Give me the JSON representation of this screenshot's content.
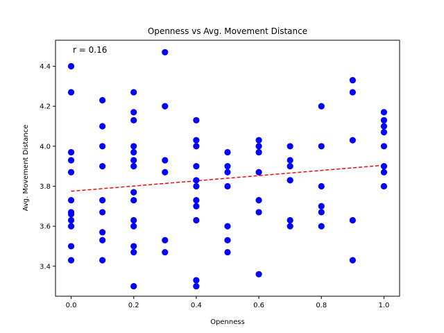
{
  "chart_data": {
    "type": "scatter",
    "title": "Openness vs Avg. Movement Distance",
    "xlabel": "Openness",
    "ylabel": "Avg. Movement Distance",
    "xlim": [
      -0.05,
      1.05
    ],
    "ylim": [
      3.25,
      4.53
    ],
    "xticks": [
      0.0,
      0.2,
      0.4,
      0.6,
      0.8,
      1.0
    ],
    "xtick_labels": [
      "0.0",
      "0.2",
      "0.4",
      "0.6",
      "0.8",
      "1.0"
    ],
    "yticks": [
      3.4,
      3.6,
      3.8,
      4.0,
      4.2,
      4.4
    ],
    "ytick_labels": [
      "3.4",
      "3.6",
      "3.8",
      "4.0",
      "4.2",
      "4.4"
    ],
    "grid": false,
    "marker_color": "#0000ff",
    "trend_color": "#ff0000",
    "annotation": "r = 0.16",
    "trendline": {
      "x": [
        0.0,
        1.0
      ],
      "y": [
        3.775,
        3.905
      ]
    },
    "points": [
      {
        "x": 0.0,
        "y": 4.4
      },
      {
        "x": 0.0,
        "y": 4.27
      },
      {
        "x": 0.0,
        "y": 3.97
      },
      {
        "x": 0.0,
        "y": 3.93
      },
      {
        "x": 0.0,
        "y": 3.87
      },
      {
        "x": 0.0,
        "y": 3.73
      },
      {
        "x": 0.0,
        "y": 3.67
      },
      {
        "x": 0.0,
        "y": 3.66
      },
      {
        "x": 0.0,
        "y": 3.63
      },
      {
        "x": 0.0,
        "y": 3.6
      },
      {
        "x": 0.0,
        "y": 3.5
      },
      {
        "x": 0.0,
        "y": 3.43
      },
      {
        "x": 0.1,
        "y": 4.23
      },
      {
        "x": 0.1,
        "y": 4.1
      },
      {
        "x": 0.1,
        "y": 4.0
      },
      {
        "x": 0.1,
        "y": 3.9
      },
      {
        "x": 0.1,
        "y": 3.73
      },
      {
        "x": 0.1,
        "y": 3.67
      },
      {
        "x": 0.1,
        "y": 3.57
      },
      {
        "x": 0.1,
        "y": 3.53
      },
      {
        "x": 0.1,
        "y": 3.43
      },
      {
        "x": 0.2,
        "y": 4.27
      },
      {
        "x": 0.2,
        "y": 4.17
      },
      {
        "x": 0.2,
        "y": 4.13
      },
      {
        "x": 0.2,
        "y": 4.0
      },
      {
        "x": 0.2,
        "y": 3.97
      },
      {
        "x": 0.2,
        "y": 3.93
      },
      {
        "x": 0.2,
        "y": 3.9
      },
      {
        "x": 0.2,
        "y": 3.77
      },
      {
        "x": 0.2,
        "y": 3.73
      },
      {
        "x": 0.2,
        "y": 3.63
      },
      {
        "x": 0.2,
        "y": 3.6
      },
      {
        "x": 0.2,
        "y": 3.5
      },
      {
        "x": 0.2,
        "y": 3.47
      },
      {
        "x": 0.2,
        "y": 3.3
      },
      {
        "x": 0.3,
        "y": 4.47
      },
      {
        "x": 0.3,
        "y": 4.2
      },
      {
        "x": 0.3,
        "y": 3.93
      },
      {
        "x": 0.3,
        "y": 3.87
      },
      {
        "x": 0.3,
        "y": 3.53
      },
      {
        "x": 0.3,
        "y": 3.47
      },
      {
        "x": 0.4,
        "y": 4.13
      },
      {
        "x": 0.4,
        "y": 4.03
      },
      {
        "x": 0.4,
        "y": 4.0
      },
      {
        "x": 0.4,
        "y": 3.9
      },
      {
        "x": 0.4,
        "y": 3.83
      },
      {
        "x": 0.4,
        "y": 3.8
      },
      {
        "x": 0.4,
        "y": 3.73
      },
      {
        "x": 0.4,
        "y": 3.7
      },
      {
        "x": 0.4,
        "y": 3.63
      },
      {
        "x": 0.4,
        "y": 3.33
      },
      {
        "x": 0.4,
        "y": 3.3
      },
      {
        "x": 0.5,
        "y": 3.97
      },
      {
        "x": 0.5,
        "y": 3.9
      },
      {
        "x": 0.5,
        "y": 3.87
      },
      {
        "x": 0.5,
        "y": 3.8
      },
      {
        "x": 0.5,
        "y": 3.6
      },
      {
        "x": 0.5,
        "y": 3.53
      },
      {
        "x": 0.5,
        "y": 3.47
      },
      {
        "x": 0.6,
        "y": 4.03
      },
      {
        "x": 0.6,
        "y": 4.0
      },
      {
        "x": 0.6,
        "y": 3.97
      },
      {
        "x": 0.6,
        "y": 3.87
      },
      {
        "x": 0.6,
        "y": 3.73
      },
      {
        "x": 0.6,
        "y": 3.67
      },
      {
        "x": 0.6,
        "y": 3.36
      },
      {
        "x": 0.7,
        "y": 4.0
      },
      {
        "x": 0.7,
        "y": 3.93
      },
      {
        "x": 0.7,
        "y": 3.9
      },
      {
        "x": 0.7,
        "y": 3.83
      },
      {
        "x": 0.7,
        "y": 3.83
      },
      {
        "x": 0.7,
        "y": 3.63
      },
      {
        "x": 0.7,
        "y": 3.6
      },
      {
        "x": 0.8,
        "y": 4.2
      },
      {
        "x": 0.8,
        "y": 4.0
      },
      {
        "x": 0.8,
        "y": 3.8
      },
      {
        "x": 0.8,
        "y": 3.7
      },
      {
        "x": 0.8,
        "y": 3.67
      },
      {
        "x": 0.8,
        "y": 3.6
      },
      {
        "x": 0.9,
        "y": 4.33
      },
      {
        "x": 0.9,
        "y": 4.27
      },
      {
        "x": 0.9,
        "y": 4.03
      },
      {
        "x": 0.9,
        "y": 3.63
      },
      {
        "x": 0.9,
        "y": 3.43
      },
      {
        "x": 1.0,
        "y": 4.17
      },
      {
        "x": 1.0,
        "y": 4.13
      },
      {
        "x": 1.0,
        "y": 4.1
      },
      {
        "x": 1.0,
        "y": 4.07
      },
      {
        "x": 1.0,
        "y": 4.0
      },
      {
        "x": 1.0,
        "y": 3.9
      },
      {
        "x": 1.0,
        "y": 3.87
      },
      {
        "x": 1.0,
        "y": 3.8
      }
    ]
  }
}
